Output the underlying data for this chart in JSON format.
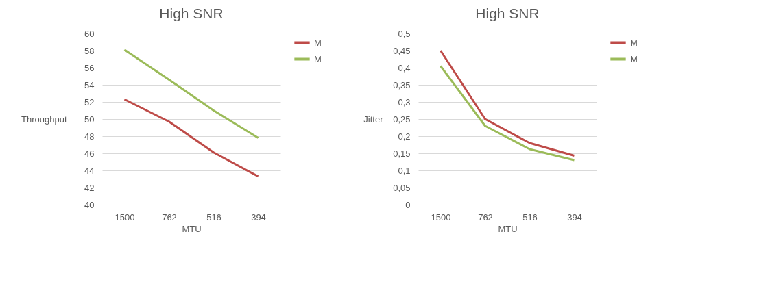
{
  "chart_data": [
    {
      "type": "line",
      "title": "High SNR",
      "xlabel": "MTU",
      "ylabel": "Throughput",
      "categories": [
        "1500",
        "762",
        "516",
        "394"
      ],
      "series": [
        {
          "name": "M",
          "color": "#be4b48",
          "values": [
            52.3,
            49.7,
            46.1,
            43.3
          ]
        },
        {
          "name": "M",
          "color": "#9bbb59",
          "values": [
            58.1,
            54.6,
            51.0,
            47.8
          ]
        }
      ],
      "ylim": [
        40,
        60
      ],
      "yticks": [
        40,
        42,
        44,
        46,
        48,
        50,
        52,
        54,
        56,
        58,
        60
      ],
      "grid": "y",
      "legend": "right"
    },
    {
      "type": "line",
      "title": "High SNR",
      "xlabel": "MTU",
      "ylabel": "Jitter",
      "categories": [
        "1500",
        "762",
        "516",
        "394"
      ],
      "series": [
        {
          "name": "M",
          "color": "#be4b48",
          "values": [
            0.45,
            0.25,
            0.18,
            0.143
          ]
        },
        {
          "name": "M",
          "color": "#9bbb59",
          "values": [
            0.405,
            0.23,
            0.162,
            0.13
          ]
        }
      ],
      "ylim": [
        0,
        0.5
      ],
      "yticks": [
        {
          "value": 0,
          "label": "0"
        },
        {
          "value": 0.05,
          "label": "0,05"
        },
        {
          "value": 0.1,
          "label": "0,1"
        },
        {
          "value": 0.15,
          "label": "0,15"
        },
        {
          "value": 0.2,
          "label": "0,2"
        },
        {
          "value": 0.25,
          "label": "0,25"
        },
        {
          "value": 0.3,
          "label": "0,3"
        },
        {
          "value": 0.35,
          "label": "0,35"
        },
        {
          "value": 0.4,
          "label": "0,4"
        },
        {
          "value": 0.45,
          "label": "0,45"
        },
        {
          "value": 0.5,
          "label": "0,5"
        }
      ],
      "grid": "y",
      "legend": "right"
    }
  ]
}
